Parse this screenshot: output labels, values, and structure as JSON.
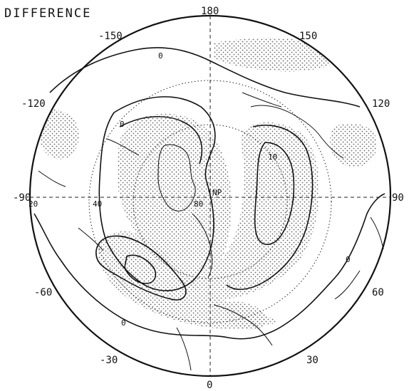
{
  "map": {
    "title": "DIFFERENCE",
    "projection": "polar-stereographic-north",
    "longitude_labels": {
      "top": "180",
      "bottom": "0",
      "left_west": "-90",
      "right_east": "90",
      "upper_left_1": "-150",
      "upper_left_2": "-120",
      "lower_left_1": "-60",
      "lower_left_2": "-30",
      "upper_right_1": "150",
      "upper_right_2": "120",
      "lower_right_1": "60",
      "lower_right_2": "30"
    },
    "latitude_labels": {
      "lat20": "20",
      "lat40": "40",
      "lat80": "80",
      "pole": "NP"
    },
    "contour_labels": {
      "zero_1": "0",
      "zero_2": "0",
      "zero_3": "0",
      "zero_4": "0",
      "ten": "10"
    },
    "colors": {
      "line": "#111111",
      "stipple": "#6a6a6a",
      "background": "#ffffff"
    }
  }
}
